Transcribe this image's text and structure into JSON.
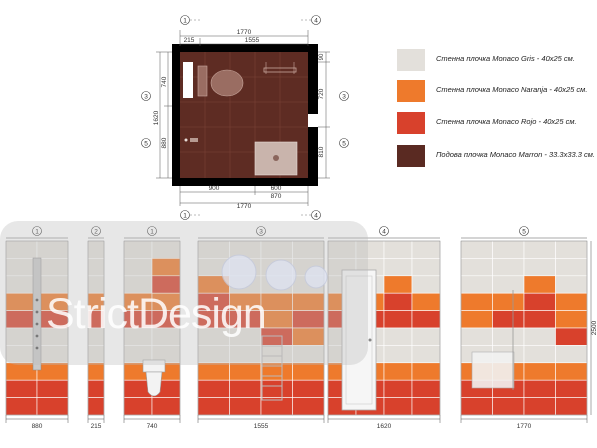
{
  "colors": {
    "gris": "#e3e0db",
    "naranja": "#ee7a2c",
    "rojo": "#d8412c",
    "marron": "#5a2a22",
    "marron_light": "#6b3429"
  },
  "legend": [
    {
      "label": "Стенна плочка Monaco Gris - 40х25 см.",
      "color": "#e3e0db"
    },
    {
      "label": "Стенна плочка Monaco Naranja - 40х25 см.",
      "color": "#ee7a2c"
    },
    {
      "label": "Стенна плочка Monaco Rojo - 40х25 см.",
      "color": "#d8412c"
    },
    {
      "label": "Подова плочка Monaco Marron - 33.3х33.3 см.",
      "color": "#5a2a22"
    }
  ],
  "plan": {
    "dim_top_total": "1770",
    "dim_top_left": "215",
    "dim_top_right": "1555",
    "dim_left_upper": "740",
    "dim_left_lower": "880",
    "dim_left_total": "1620",
    "dim_right_90": "90",
    "dim_right_720": "720",
    "dim_right_810": "810",
    "dim_bottom_900": "900",
    "dim_bottom_600": "600",
    "dim_bottom_870": "870",
    "dim_bottom_total": "1770",
    "markers": {
      "top_left": "1",
      "top_right": "4",
      "left_upper": "3",
      "left_lower": "5",
      "right_upper": "3",
      "right_lower": "5",
      "bottom_left": "1",
      "bottom_right": "4"
    }
  },
  "elevations": [
    {
      "label": "1",
      "width": "880"
    },
    {
      "label": "2",
      "width": "215"
    },
    {
      "label": "1",
      "width": "740"
    },
    {
      "label": "3",
      "width": "1555"
    },
    {
      "label": "4",
      "width": "1620"
    },
    {
      "label": "5",
      "width": "1770"
    }
  ],
  "height_dim": "2500",
  "watermark": "StrictDesign"
}
